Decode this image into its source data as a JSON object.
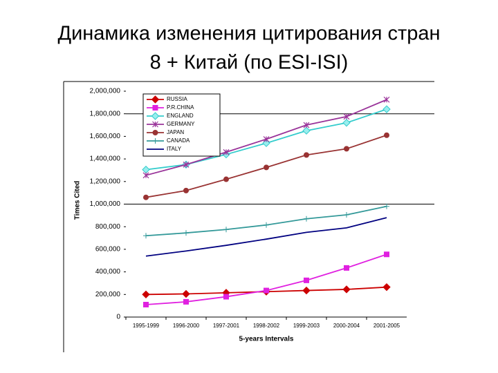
{
  "chart_data": {
    "type": "line",
    "title": [
      "Динамика изменения цитирования стран",
      "8 + Китай (по ESI-ISI)"
    ],
    "x_label": "5-years Intervals",
    "y_label": "Times Cited",
    "categories": [
      "1995-1999",
      "1996-2000",
      "1997-2001",
      "1998-2002",
      "1999-2003",
      "2000-2004",
      "2001-2005"
    ],
    "ylim": [
      0,
      2000000
    ],
    "yticks": [
      {
        "value": 0,
        "label": "0"
      },
      {
        "value": 200000,
        "label": "200,000"
      },
      {
        "value": 400000,
        "label": "400,000"
      },
      {
        "value": 600000,
        "label": "600,000"
      },
      {
        "value": 800000,
        "label": "800,000"
      },
      {
        "value": 1000000,
        "label": "1,000,000"
      },
      {
        "value": 1200000,
        "label": "1,200,000"
      },
      {
        "value": 1400000,
        "label": "1,400,000"
      },
      {
        "value": 1600000,
        "label": "1,600,000"
      },
      {
        "value": 1800000,
        "label": "1,800,000"
      },
      {
        "value": 2000000,
        "label": "2,000,000"
      }
    ],
    "reference_lines": [
      1000000,
      1800000
    ],
    "legend": "top-left",
    "series": [
      {
        "name": "RUSSIA",
        "color": "#cc0000",
        "marker": "diamond",
        "values": [
          200000,
          205000,
          215000,
          225000,
          235000,
          245000,
          265000
        ]
      },
      {
        "name": "P.R.CHINA",
        "color": "#e020e0",
        "marker": "square",
        "values": [
          110000,
          135000,
          180000,
          235000,
          325000,
          435000,
          555000
        ]
      },
      {
        "name": "ENGLAND",
        "color": "#33cccc",
        "marker": "diamond",
        "values": [
          1305000,
          1350000,
          1440000,
          1540000,
          1650000,
          1720000,
          1840000
        ]
      },
      {
        "name": "GERMANY",
        "color": "#993399",
        "marker": "x",
        "values": [
          1255000,
          1350000,
          1460000,
          1575000,
          1700000,
          1775000,
          1925000
        ]
      },
      {
        "name": "JAPAN",
        "color": "#993333",
        "marker": "circle",
        "values": [
          1060000,
          1120000,
          1220000,
          1325000,
          1435000,
          1490000,
          1610000
        ]
      },
      {
        "name": "CANADA",
        "color": "#339999",
        "marker": "plus",
        "values": [
          720000,
          745000,
          775000,
          815000,
          870000,
          905000,
          980000
        ]
      },
      {
        "name": "ITALY",
        "color": "#000080",
        "marker": "none",
        "values": [
          540000,
          585000,
          635000,
          690000,
          750000,
          790000,
          880000
        ]
      }
    ]
  }
}
